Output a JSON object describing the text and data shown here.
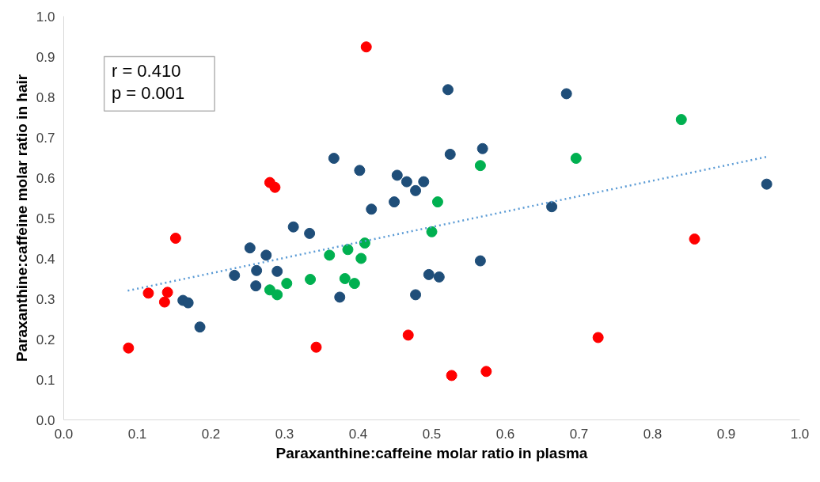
{
  "chart_data": {
    "type": "scatter",
    "xlabel": "Paraxanthine:caffeine molar ratio in plasma",
    "ylabel": "Paraxanthine:caffeine molar ratio in hair",
    "annotations": [
      "r = 0.410",
      "p = 0.001"
    ],
    "xlim": [
      0,
      1
    ],
    "ylim": [
      0,
      1
    ],
    "xticks": [
      {
        "value": 0,
        "label": "0.0"
      },
      0.1,
      0.2,
      0.3,
      0.4,
      0.5,
      0.6,
      0.7,
      0.8,
      0.9,
      {
        "value": 1,
        "label": "1.0"
      }
    ],
    "yticks": [
      {
        "value": 0,
        "label": "0.0"
      },
      0.1,
      0.2,
      0.3,
      0.4,
      0.5,
      0.6,
      0.7,
      0.8,
      0.9,
      {
        "value": 1,
        "label": "1.0"
      }
    ],
    "grid": false,
    "marker": "circle",
    "series": [
      {
        "color": "#ff0000",
        "x": [
          0.088,
          0.115,
          0.141,
          0.137,
          0.152,
          0.28,
          0.287,
          0.343,
          0.411,
          0.468,
          0.527,
          0.574,
          0.726,
          0.857
        ],
        "values": [
          0.178,
          0.314,
          0.316,
          0.292,
          0.45,
          0.588,
          0.576,
          0.18,
          0.924,
          0.21,
          0.11,
          0.12,
          0.204,
          0.448
        ]
      },
      {
        "color": "#1f4e79",
        "x": [
          0.162,
          0.169,
          0.185,
          0.232,
          0.253,
          0.261,
          0.262,
          0.275,
          0.29,
          0.312,
          0.334,
          0.367,
          0.375,
          0.402,
          0.418,
          0.449,
          0.453,
          0.466,
          0.478,
          0.489,
          0.478,
          0.496,
          0.51,
          0.522,
          0.525,
          0.566,
          0.569,
          0.663,
          0.683,
          0.955
        ],
        "values": [
          0.296,
          0.29,
          0.23,
          0.358,
          0.426,
          0.332,
          0.37,
          0.408,
          0.368,
          0.478,
          0.462,
          0.648,
          0.304,
          0.618,
          0.522,
          0.54,
          0.606,
          0.59,
          0.568,
          0.59,
          0.31,
          0.36,
          0.354,
          0.818,
          0.658,
          0.394,
          0.672,
          0.528,
          0.808,
          0.584
        ]
      },
      {
        "color": "#00b050",
        "x": [
          0.28,
          0.29,
          0.303,
          0.335,
          0.361,
          0.382,
          0.386,
          0.395,
          0.404,
          0.409,
          0.5,
          0.508,
          0.566,
          0.696,
          0.839
        ],
        "values": [
          0.322,
          0.31,
          0.338,
          0.348,
          0.408,
          0.35,
          0.422,
          0.338,
          0.4,
          0.438,
          0.466,
          0.54,
          0.63,
          0.648,
          0.744
        ]
      },
      {
        "type": "line",
        "color": "#5b9bd5",
        "line_style": "dotted",
        "marker": "none",
        "x": [
          0.087,
          0.956
        ],
        "values": [
          0.32,
          0.652
        ]
      }
    ]
  }
}
